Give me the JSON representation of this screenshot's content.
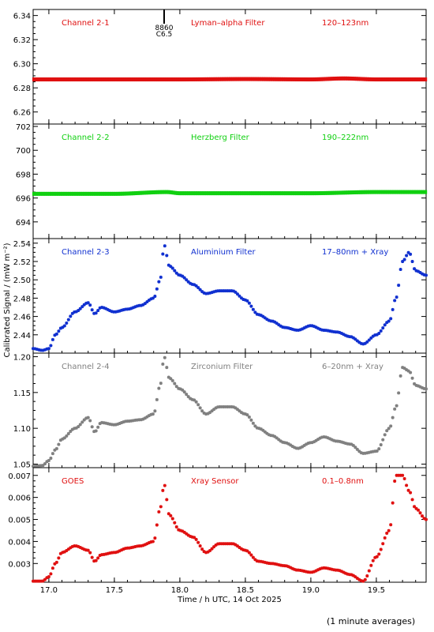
{
  "figure": {
    "ylabel": "Calibrated Signal / (mW m⁻²)",
    "xlabel": "Time / h UTC, 14 Oct 2025",
    "footer_note": "(1 minute averages)",
    "x_range": [
      16.88,
      19.88
    ],
    "x_ticks": [
      "17.0",
      "17.5",
      "18.0",
      "18.5",
      "19.0",
      "19.5"
    ],
    "annotation": {
      "x": 17.88,
      "lines": [
        "8860",
        "C6.5"
      ]
    }
  },
  "chart_data": [
    {
      "type": "scatter",
      "channel": "Channel 2-1",
      "filter": "Lyman–alpha Filter",
      "band": "120–123nm",
      "color": "#e01010",
      "ylim": [
        6.25,
        6.345
      ],
      "yticks": [
        "6.26",
        "6.28",
        "6.30",
        "6.32",
        "6.34"
      ],
      "x": [
        16.88,
        17.5,
        18.0,
        18.5,
        19.0,
        19.25,
        19.5,
        19.88
      ],
      "y": [
        6.287,
        6.287,
        6.287,
        6.2873,
        6.287,
        6.2878,
        6.287,
        6.287
      ]
    },
    {
      "type": "scatter",
      "channel": "Channel 2-2",
      "filter": "Herzberg Filter",
      "band": "190–222nm",
      "color": "#10d010",
      "ylim": [
        692.6,
        702.2
      ],
      "yticks": [
        "694",
        "696",
        "698",
        "700",
        "702"
      ],
      "x": [
        16.88,
        17.5,
        17.9,
        18.0,
        18.5,
        19.0,
        19.5,
        19.88
      ],
      "y": [
        696.35,
        696.35,
        696.5,
        696.4,
        696.4,
        696.4,
        696.5,
        696.5
      ]
    },
    {
      "type": "scatter",
      "channel": "Channel 2-3",
      "filter": "Aluminium Filter",
      "band": "17–80nm + Xray",
      "color": "#1030d0",
      "ylim": [
        2.42,
        2.545
      ],
      "yticks": [
        "2.44",
        "2.46",
        "2.48",
        "2.50",
        "2.52",
        "2.54"
      ],
      "x": [
        16.88,
        16.95,
        17.0,
        17.05,
        17.1,
        17.2,
        17.3,
        17.35,
        17.4,
        17.5,
        17.6,
        17.7,
        17.8,
        17.85,
        17.88,
        17.92,
        18.0,
        18.1,
        18.2,
        18.3,
        18.4,
        18.5,
        18.6,
        18.7,
        18.8,
        18.9,
        19.0,
        19.1,
        19.2,
        19.3,
        19.4,
        19.5,
        19.6,
        19.65,
        19.7,
        19.75,
        19.8,
        19.88
      ],
      "y": [
        2.425,
        2.423,
        2.425,
        2.44,
        2.448,
        2.465,
        2.475,
        2.463,
        2.47,
        2.465,
        2.468,
        2.472,
        2.48,
        2.5,
        2.538,
        2.515,
        2.505,
        2.495,
        2.485,
        2.488,
        2.488,
        2.478,
        2.462,
        2.455,
        2.448,
        2.445,
        2.45,
        2.445,
        2.443,
        2.438,
        2.43,
        2.44,
        2.455,
        2.48,
        2.52,
        2.53,
        2.51,
        2.505
      ]
    },
    {
      "type": "scatter",
      "channel": "Channel 2-4",
      "filter": "Zirconium Filter",
      "band": "6–20nm + Xray",
      "color": "#808080",
      "ylim": [
        1.045,
        1.205
      ],
      "yticks": [
        "1.05",
        "1.10",
        "1.15",
        "1.20"
      ],
      "x": [
        16.88,
        16.95,
        17.0,
        17.05,
        17.1,
        17.2,
        17.3,
        17.35,
        17.4,
        17.5,
        17.6,
        17.7,
        17.8,
        17.85,
        17.88,
        17.92,
        18.0,
        18.1,
        18.2,
        18.3,
        18.4,
        18.5,
        18.6,
        18.7,
        18.8,
        18.9,
        19.0,
        19.1,
        19.2,
        19.3,
        19.4,
        19.5,
        19.6,
        19.65,
        19.7,
        19.75,
        19.8,
        19.88
      ],
      "y": [
        1.047,
        1.048,
        1.055,
        1.07,
        1.085,
        1.1,
        1.115,
        1.095,
        1.108,
        1.105,
        1.11,
        1.112,
        1.12,
        1.16,
        1.2,
        1.17,
        1.155,
        1.14,
        1.12,
        1.13,
        1.13,
        1.12,
        1.1,
        1.09,
        1.08,
        1.072,
        1.08,
        1.088,
        1.082,
        1.078,
        1.065,
        1.068,
        1.1,
        1.13,
        1.185,
        1.18,
        1.16,
        1.155
      ]
    },
    {
      "type": "scatter",
      "channel": "GOES",
      "filter": "Xray Sensor",
      "band": "0.1–0.8nm",
      "color": "#e01010",
      "ylim": [
        0.00215,
        0.00735
      ],
      "yticks": [
        "0.003",
        "0.004",
        "0.005",
        "0.006",
        "0.007"
      ],
      "x": [
        16.88,
        16.95,
        17.0,
        17.05,
        17.1,
        17.2,
        17.3,
        17.35,
        17.4,
        17.5,
        17.6,
        17.7,
        17.8,
        17.85,
        17.88,
        17.92,
        18.0,
        18.1,
        18.2,
        18.3,
        18.4,
        18.5,
        18.6,
        18.7,
        18.8,
        18.9,
        19.0,
        19.1,
        19.2,
        19.3,
        19.4,
        19.5,
        19.6,
        19.65,
        19.7,
        19.75,
        19.8,
        19.88
      ],
      "y": [
        0.0022,
        0.0022,
        0.0024,
        0.003,
        0.0035,
        0.0038,
        0.0036,
        0.0031,
        0.0034,
        0.0035,
        0.0037,
        0.0038,
        0.004,
        0.0055,
        0.0066,
        0.0052,
        0.0045,
        0.0042,
        0.0035,
        0.0039,
        0.0039,
        0.0036,
        0.0031,
        0.003,
        0.0029,
        0.0027,
        0.0026,
        0.0028,
        0.0027,
        0.0025,
        0.0022,
        0.0033,
        0.0045,
        0.007,
        0.007,
        0.0063,
        0.0055,
        0.005
      ]
    }
  ]
}
